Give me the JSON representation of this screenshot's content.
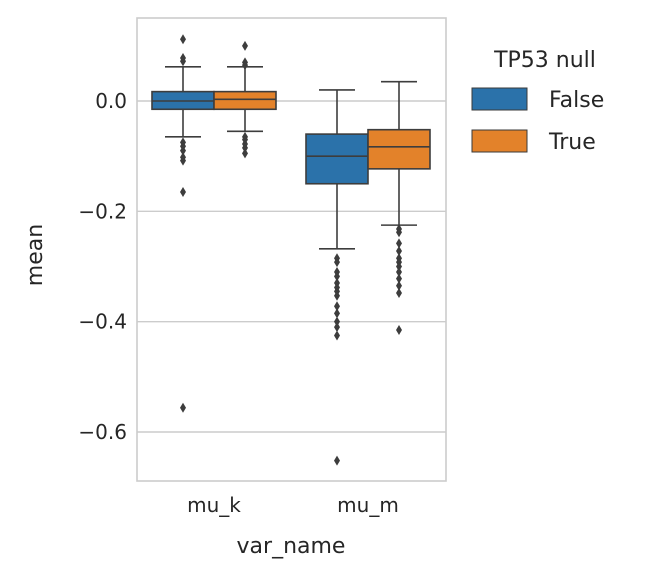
{
  "chart_data": {
    "type": "box",
    "xlabel": "var_name",
    "ylabel": "mean",
    "categories": [
      "mu_k",
      "mu_m"
    ],
    "ylim": [
      -0.69,
      0.15
    ],
    "yticks": [
      0.0,
      -0.2,
      -0.4,
      -0.6
    ],
    "ytick_labels": [
      "0.0",
      "−0.2",
      "−0.4",
      "−0.6"
    ],
    "grid": true,
    "legend": {
      "title": "TP53 null",
      "placement": "outside-top-right",
      "entries": [
        {
          "label": "False",
          "color": "#2b72aa"
        },
        {
          "label": "True",
          "color": "#e3822a"
        }
      ]
    },
    "series": [
      {
        "name": "False",
        "color": "#2b72aa",
        "boxes": [
          {
            "category": "mu_k",
            "whisker_low": -0.065,
            "q1": -0.015,
            "median": 0.0,
            "q3": 0.017,
            "whisker_high": 0.062,
            "outliers": [
              0.112,
              0.078,
              0.072,
              -0.075,
              -0.082,
              -0.09,
              -0.102,
              -0.108,
              -0.165,
              -0.556
            ]
          },
          {
            "category": "mu_m",
            "whisker_low": -0.268,
            "q1": -0.15,
            "median": -0.1,
            "q3": -0.06,
            "whisker_high": 0.02,
            "outliers": [
              -0.285,
              -0.292,
              -0.31,
              -0.318,
              -0.33,
              -0.338,
              -0.345,
              -0.353,
              -0.372,
              -0.385,
              -0.4,
              -0.41,
              -0.425,
              -0.652
            ]
          }
        ]
      },
      {
        "name": "True",
        "color": "#e3822a",
        "boxes": [
          {
            "category": "mu_k",
            "whisker_low": -0.055,
            "q1": -0.015,
            "median": 0.003,
            "q3": 0.017,
            "whisker_high": 0.062,
            "outliers": [
              0.1,
              0.07,
              0.065,
              -0.065,
              -0.07,
              -0.078,
              -0.085,
              -0.095
            ]
          },
          {
            "category": "mu_m",
            "whisker_low": -0.225,
            "q1": -0.123,
            "median": -0.083,
            "q3": -0.052,
            "whisker_high": 0.035,
            "outliers": [
              -0.232,
              -0.238,
              -0.258,
              -0.272,
              -0.285,
              -0.292,
              -0.3,
              -0.31,
              -0.322,
              -0.335,
              -0.348,
              -0.415
            ]
          }
        ]
      }
    ]
  }
}
